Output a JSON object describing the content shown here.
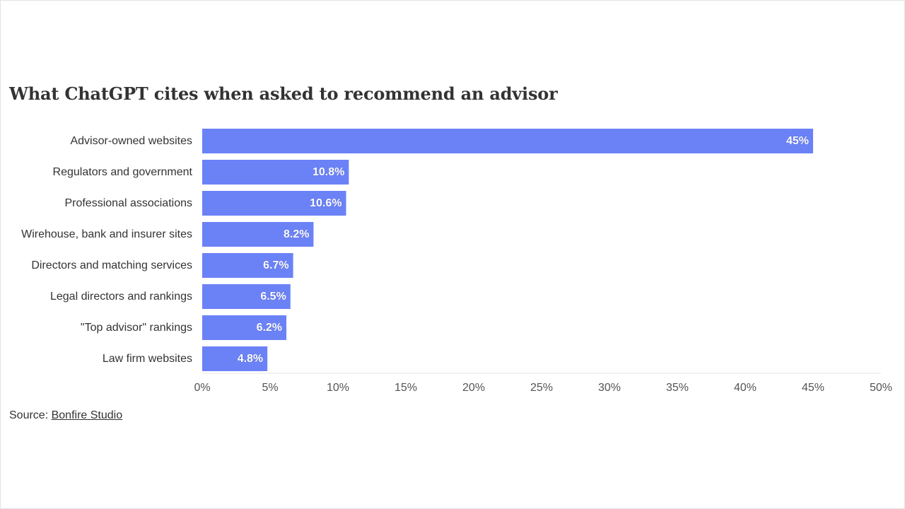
{
  "chart_data": {
    "type": "bar",
    "orientation": "horizontal",
    "title": "What ChatGPT cites when asked to recommend an advisor",
    "categories": [
      "Advisor-owned websites",
      "Regulators and government",
      "Professional associations",
      "Wirehouse, bank and insurer sites",
      "Directors and matching services",
      "Legal directors and rankings",
      "\"Top advisor\" rankings",
      "Law firm websites"
    ],
    "values": [
      45,
      10.8,
      10.6,
      8.2,
      6.7,
      6.5,
      6.2,
      4.8
    ],
    "value_labels": [
      "45%",
      "10.8%",
      "10.6%",
      "8.2%",
      "6.7%",
      "6.5%",
      "6.2%",
      "4.8%"
    ],
    "xlim": [
      0,
      50
    ],
    "x_ticks": [
      "0%",
      "5%",
      "10%",
      "15%",
      "20%",
      "25%",
      "30%",
      "35%",
      "40%",
      "45%",
      "50%"
    ],
    "bar_color": "#6b82f7",
    "grid": false
  },
  "source": {
    "label": "Source:",
    "link_text": "Bonfire Studio"
  }
}
